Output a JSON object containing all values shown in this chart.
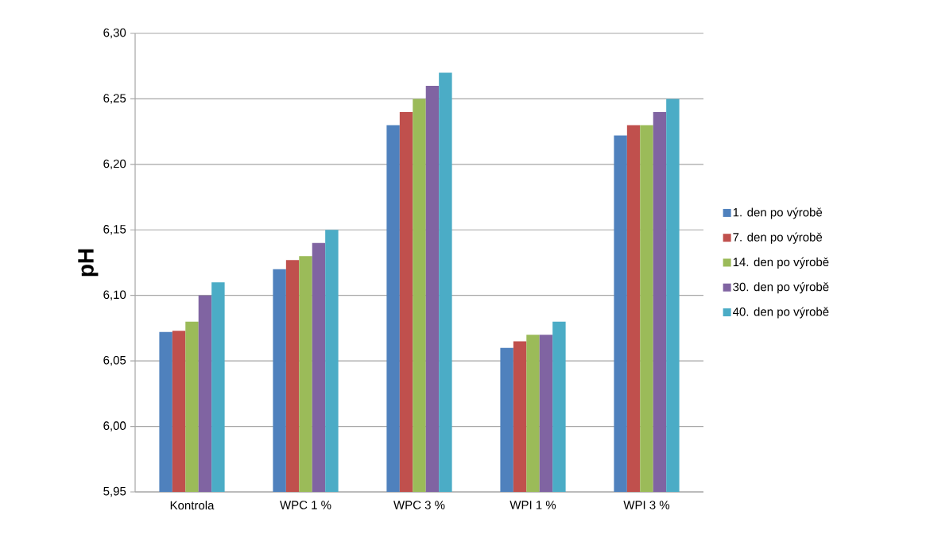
{
  "chart_data": {
    "type": "bar",
    "ylabel": "pH",
    "categories": [
      "Kontrola",
      "WPC 1  %",
      "WPC 3 %",
      "WPI 1 %",
      "WPI 3 %"
    ],
    "series": [
      {
        "name": "1. den po výrobě",
        "color": "#4f81bd",
        "values": [
          6.072,
          6.12,
          6.23,
          6.06,
          6.222
        ]
      },
      {
        "name": "7. den po výrobě",
        "color": "#c0504d",
        "values": [
          6.073,
          6.127,
          6.24,
          6.065,
          6.23
        ]
      },
      {
        "name": "14. den po výrobě",
        "color": "#9bbb59",
        "values": [
          6.08,
          6.13,
          6.25,
          6.07,
          6.23
        ]
      },
      {
        "name": "30. den po výrobě",
        "color": "#8064a2",
        "values": [
          6.1,
          6.14,
          6.26,
          6.07,
          6.24
        ]
      },
      {
        "name": "40. den po výrobě",
        "color": "#4bacc6",
        "values": [
          6.11,
          6.15,
          6.27,
          6.08,
          6.25
        ]
      }
    ],
    "ylim": [
      5.95,
      6.3
    ],
    "yticks": [
      {
        "value": 5.95,
        "label": "5,95"
      },
      {
        "value": 6.0,
        "label": "6,00"
      },
      {
        "value": 6.05,
        "label": "6,05"
      },
      {
        "value": 6.1,
        "label": "6,10"
      },
      {
        "value": 6.15,
        "label": "6,15"
      },
      {
        "value": 6.2,
        "label": "6,20"
      },
      {
        "value": 6.25,
        "label": "6,25"
      },
      {
        "value": 6.3,
        "label": "6,30"
      }
    ],
    "grid": "y",
    "legend": "right"
  }
}
